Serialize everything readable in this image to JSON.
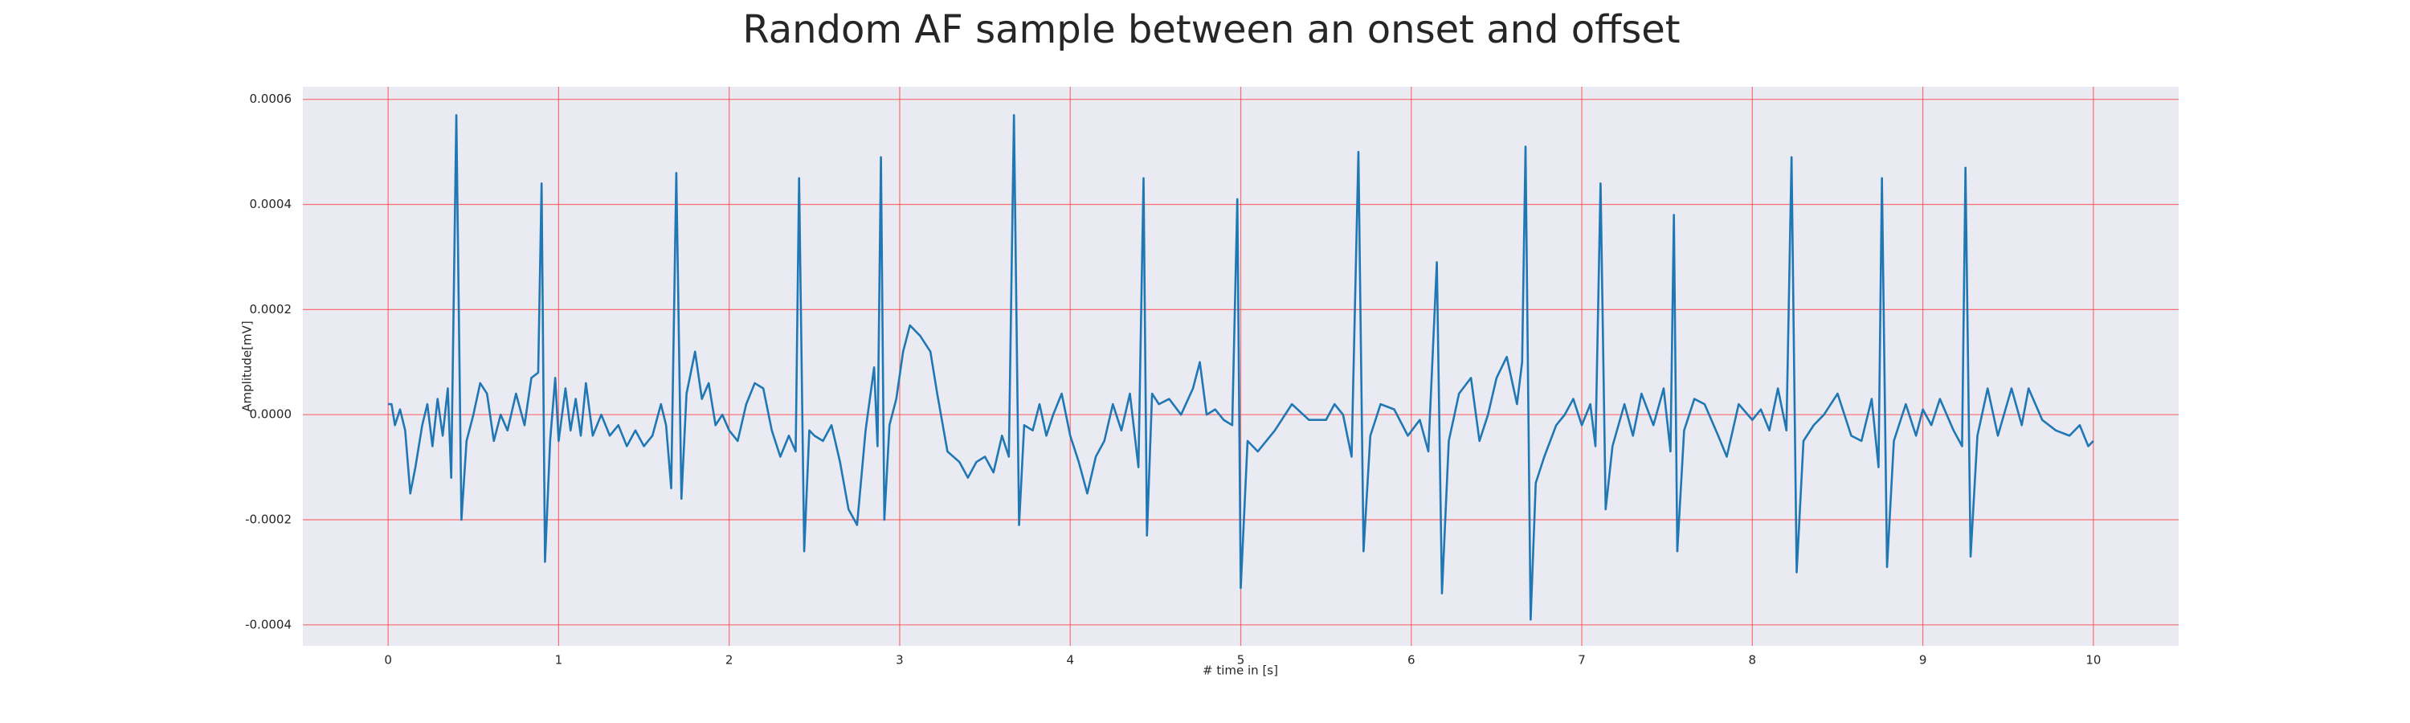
{
  "chart_data": {
    "type": "line",
    "title": "Random AF sample between an onset and offset",
    "xlabel": "# time in [s]",
    "ylabel": "Amplitude[mV]",
    "color": "#1f77b4",
    "grid": true,
    "grid_color": "#ff4d4d",
    "xlim": [
      -0.5,
      10.5
    ],
    "ylim": [
      -0.00044,
      0.000624
    ],
    "xticks": [
      0,
      1,
      2,
      3,
      4,
      5,
      6,
      7,
      8,
      9,
      10
    ],
    "yticks": [
      -0.0004,
      -0.0002,
      {
        "value": 0,
        "label": "0.0000"
      },
      0.0002,
      0.0004,
      0.0006
    ],
    "x": [
      0,
      0.02,
      0.04,
      0.07,
      0.1,
      0.13,
      0.16,
      0.2,
      0.23,
      0.26,
      0.29,
      0.32,
      0.35,
      0.37,
      0.4,
      0.43,
      0.46,
      0.5,
      0.54,
      0.58,
      0.62,
      0.66,
      0.7,
      0.75,
      0.8,
      0.84,
      0.88,
      0.9,
      0.92,
      0.95,
      0.98,
      1.0,
      1.04,
      1.07,
      1.1,
      1.13,
      1.16,
      1.2,
      1.25,
      1.3,
      1.35,
      1.4,
      1.45,
      1.5,
      1.55,
      1.6,
      1.63,
      1.66,
      1.69,
      1.72,
      1.75,
      1.8,
      1.84,
      1.88,
      1.92,
      1.96,
      2.0,
      2.05,
      2.1,
      2.15,
      2.2,
      2.25,
      2.3,
      2.35,
      2.39,
      2.41,
      2.44,
      2.47,
      2.5,
      2.55,
      2.6,
      2.65,
      2.7,
      2.75,
      2.8,
      2.85,
      2.87,
      2.89,
      2.91,
      2.94,
      2.98,
      3.02,
      3.06,
      3.12,
      3.18,
      3.22,
      3.28,
      3.35,
      3.4,
      3.45,
      3.5,
      3.55,
      3.6,
      3.64,
      3.67,
      3.7,
      3.73,
      3.78,
      3.82,
      3.86,
      3.9,
      3.95,
      4.0,
      4.05,
      4.1,
      4.15,
      4.2,
      4.25,
      4.3,
      4.35,
      4.4,
      4.43,
      4.45,
      4.48,
      4.52,
      4.58,
      4.65,
      4.72,
      4.76,
      4.8,
      4.85,
      4.9,
      4.95,
      4.98,
      5.0,
      5.04,
      5.1,
      5.2,
      5.3,
      5.4,
      5.5,
      5.55,
      5.6,
      5.65,
      5.69,
      5.72,
      5.76,
      5.82,
      5.9,
      5.98,
      6.05,
      6.1,
      6.15,
      6.18,
      6.22,
      6.28,
      6.35,
      6.4,
      6.45,
      6.5,
      6.56,
      6.62,
      6.65,
      6.67,
      6.7,
      6.73,
      6.78,
      6.85,
      6.9,
      6.95,
      7.0,
      7.05,
      7.08,
      7.11,
      7.14,
      7.18,
      7.25,
      7.3,
      7.35,
      7.42,
      7.48,
      7.52,
      7.54,
      7.56,
      7.6,
      7.66,
      7.72,
      7.8,
      7.85,
      7.92,
      8.0,
      8.05,
      8.1,
      8.15,
      8.2,
      8.23,
      8.26,
      8.3,
      8.36,
      8.42,
      8.5,
      8.58,
      8.64,
      8.7,
      8.74,
      8.76,
      8.79,
      8.83,
      8.9,
      8.96,
      9.0,
      9.05,
      9.1,
      9.18,
      9.23,
      9.25,
      9.28,
      9.32,
      9.38,
      9.44,
      9.52,
      9.58,
      9.62,
      9.7,
      9.78,
      9.86,
      9.92,
      9.97,
      10.0
    ],
    "values": [
      2e-05,
      2e-05,
      -2e-05,
      1e-05,
      -3e-05,
      -0.00015,
      -0.0001,
      -2e-05,
      2e-05,
      -6e-05,
      3e-05,
      -4e-05,
      5e-05,
      -0.00012,
      0.00057,
      -0.0002,
      -5e-05,
      0.0,
      6e-05,
      4e-05,
      -5e-05,
      0.0,
      -3e-05,
      4e-05,
      -2e-05,
      7e-05,
      8e-05,
      0.00044,
      -0.00028,
      -5e-05,
      7e-05,
      -5e-05,
      5e-05,
      -3e-05,
      3e-05,
      -4e-05,
      6e-05,
      -4e-05,
      0.0,
      -4e-05,
      -2e-05,
      -6e-05,
      -3e-05,
      -6e-05,
      -4e-05,
      2e-05,
      -2e-05,
      -0.00014,
      0.00046,
      -0.00016,
      4e-05,
      0.00012,
      3e-05,
      6e-05,
      -2e-05,
      0.0,
      -3e-05,
      -5e-05,
      2e-05,
      6e-05,
      5e-05,
      -3e-05,
      -8e-05,
      -4e-05,
      -7e-05,
      0.00045,
      -0.00026,
      -3e-05,
      -4e-05,
      -5e-05,
      -2e-05,
      -9e-05,
      -0.00018,
      -0.00021,
      -3e-05,
      9e-05,
      -6e-05,
      0.00049,
      -0.0002,
      -2e-05,
      3e-05,
      0.00012,
      0.00017,
      0.00015,
      0.00012,
      4e-05,
      -7e-05,
      -9e-05,
      -0.00012,
      -9e-05,
      -8e-05,
      -0.00011,
      -4e-05,
      -8e-05,
      0.00057,
      -0.00021,
      -2e-05,
      -3e-05,
      2e-05,
      -4e-05,
      0.0,
      4e-05,
      -4e-05,
      -9e-05,
      -0.00015,
      -8e-05,
      -5e-05,
      2e-05,
      -3e-05,
      4e-05,
      -0.0001,
      0.00045,
      -0.00023,
      4e-05,
      2e-05,
      3e-05,
      0.0,
      5e-05,
      0.0001,
      0.0,
      1e-05,
      -1e-05,
      -2e-05,
      0.00041,
      -0.00033,
      -5e-05,
      -7e-05,
      -3e-05,
      2e-05,
      -1e-05,
      -1e-05,
      2e-05,
      0.0,
      -8e-05,
      0.0005,
      -0.00026,
      -4e-05,
      2e-05,
      1e-05,
      -4e-05,
      -1e-05,
      -7e-05,
      0.00029,
      -0.00034,
      -5e-05,
      4e-05,
      7e-05,
      -5e-05,
      0.0,
      7e-05,
      0.00011,
      2e-05,
      0.0001,
      0.00051,
      -0.00039,
      -0.00013,
      -8e-05,
      -2e-05,
      0.0,
      3e-05,
      -2e-05,
      2e-05,
      -6e-05,
      0.00044,
      -0.00018,
      -6e-05,
      2e-05,
      -4e-05,
      4e-05,
      -2e-05,
      5e-05,
      -7e-05,
      0.00038,
      -0.00026,
      -3e-05,
      3e-05,
      2e-05,
      -4e-05,
      -8e-05,
      2e-05,
      -1e-05,
      1e-05,
      -3e-05,
      5e-05,
      -3e-05,
      0.00049,
      -0.0003,
      -5e-05,
      -2e-05,
      0.0,
      4e-05,
      -4e-05,
      -5e-05,
      3e-05,
      -0.0001,
      0.00045,
      -0.00029,
      -5e-05,
      2e-05,
      -4e-05,
      1e-05,
      -2e-05,
      3e-05,
      -3e-05,
      -6e-05,
      0.00047,
      -0.00027,
      -4e-05,
      5e-05,
      -4e-05,
      5e-05,
      -2e-05,
      5e-05,
      -1e-05,
      -3e-05,
      -4e-05,
      -2e-05,
      -6e-05,
      -5e-05
    ]
  }
}
